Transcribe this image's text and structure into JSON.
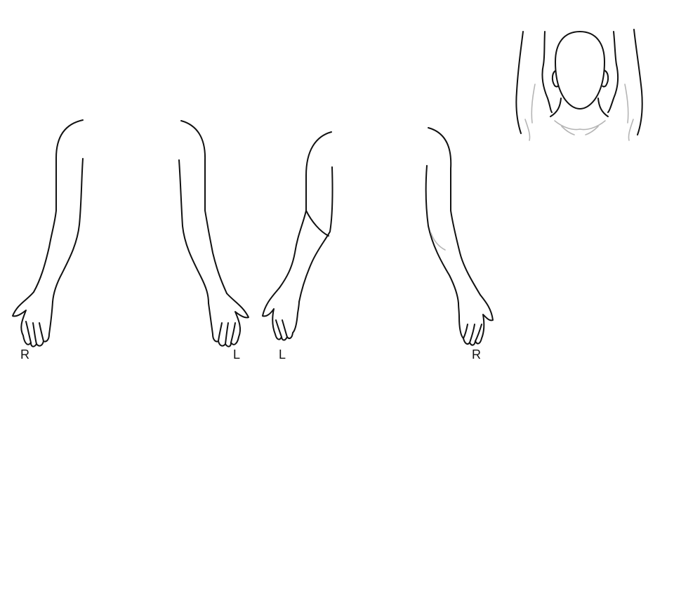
{
  "figure": {
    "views": [
      {
        "id": "palms-forward",
        "left_side_label": "R",
        "right_side_label": "L"
      },
      {
        "id": "palms-back",
        "left_side_label": "L",
        "right_side_label": "R"
      }
    ],
    "inset": {
      "id": "arms-raised-head-view"
    }
  },
  "colors": {
    "outline": "#111111",
    "shading": "#b5b5b5",
    "background": "#ffffff"
  }
}
